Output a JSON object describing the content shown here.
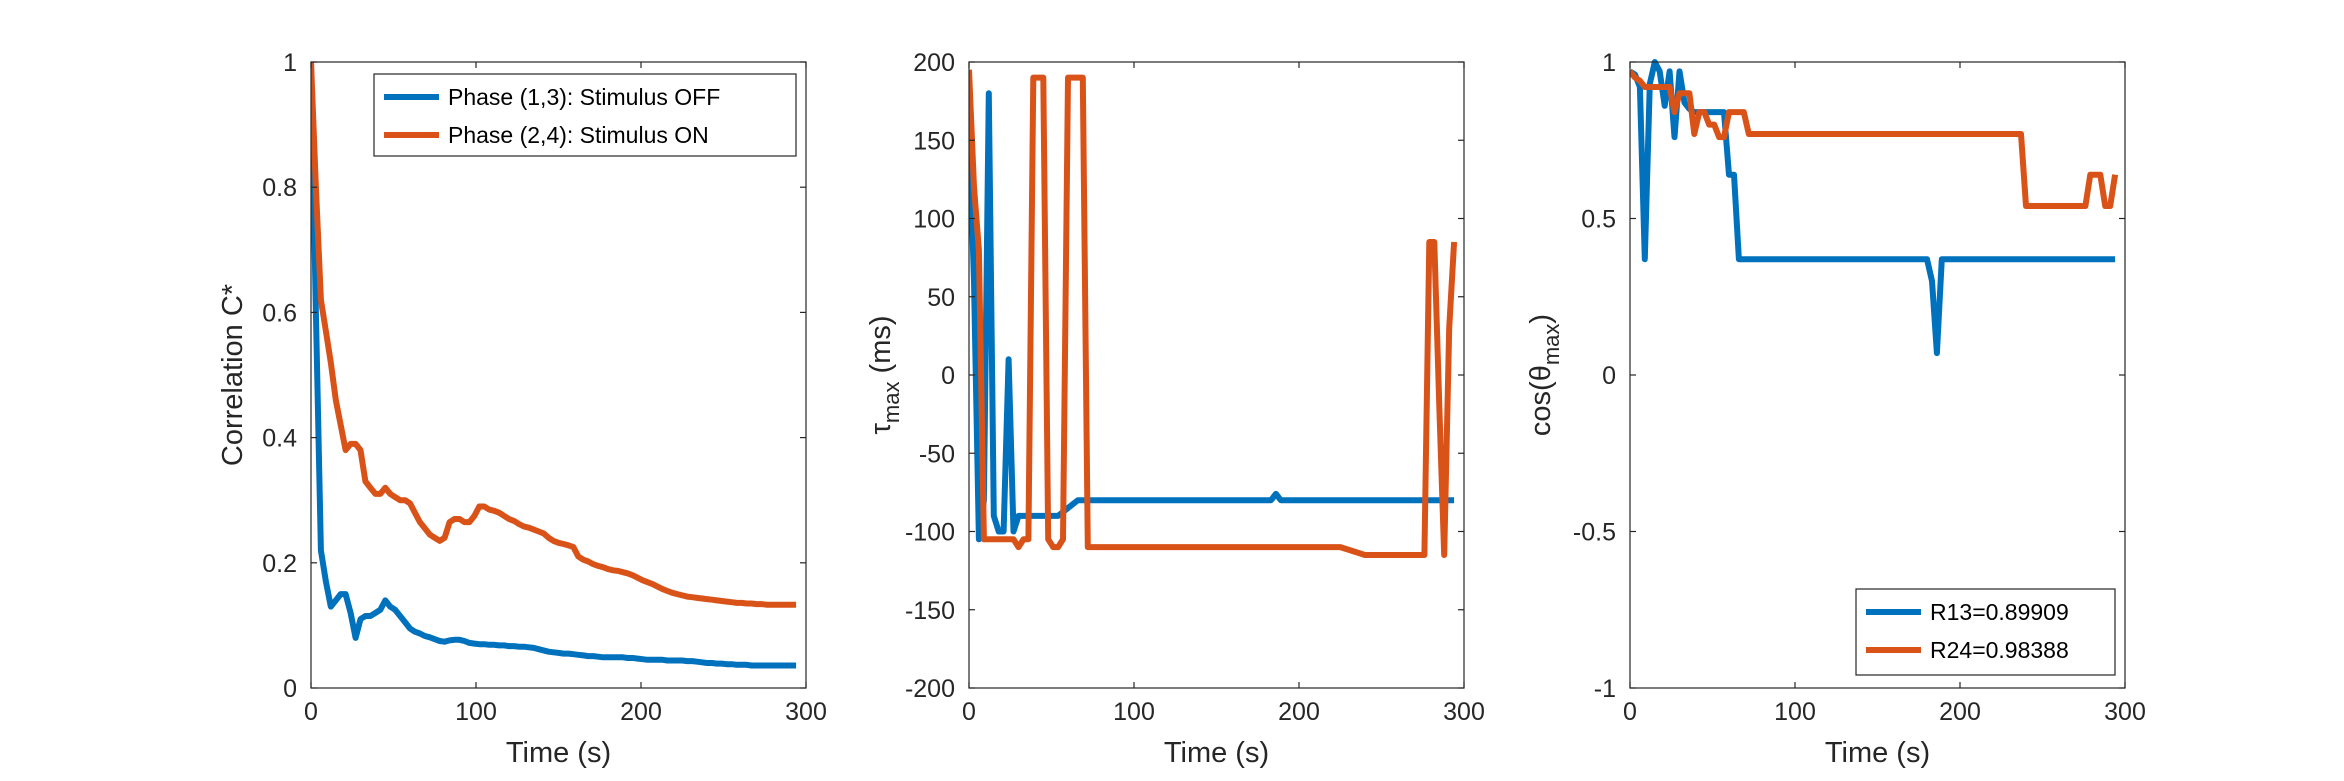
{
  "colors": {
    "blue": "#0072BD",
    "orange": "#D95319",
    "axis": "#262626"
  },
  "chart_data": [
    {
      "type": "line",
      "xlabel": "Time (s)",
      "ylabel": "Correlation C*",
      "xlim": [
        0,
        300
      ],
      "ylim": [
        0,
        1
      ],
      "xticks": [
        0,
        100,
        200,
        300
      ],
      "yticks": [
        0,
        0.2,
        0.4,
        0.6,
        0.8,
        1
      ],
      "xtick_labels": [
        "0",
        "100",
        "200",
        "300"
      ],
      "ytick_labels": [
        "0",
        "0.2",
        "0.4",
        "0.6",
        "0.8",
        "1"
      ],
      "grid": false,
      "legend": "top-right",
      "series": [
        {
          "name": "Phase (1,3): Stimulus OFF",
          "color": "#0072BD",
          "x": [
            0,
            3,
            6,
            9,
            12,
            15,
            18,
            21,
            24,
            27,
            30,
            33,
            36,
            39,
            42,
            45,
            48,
            51,
            54,
            57,
            60,
            63,
            66,
            69,
            72,
            75,
            78,
            81,
            84,
            87,
            90,
            93,
            96,
            99,
            102,
            105,
            108,
            111,
            114,
            117,
            120,
            123,
            126,
            129,
            132,
            135,
            138,
            141,
            144,
            147,
            150,
            153,
            156,
            159,
            162,
            165,
            168,
            171,
            174,
            177,
            180,
            183,
            186,
            189,
            192,
            195,
            198,
            201,
            204,
            207,
            210,
            213,
            216,
            219,
            222,
            225,
            228,
            231,
            234,
            237,
            240,
            243,
            246,
            249,
            252,
            255,
            258,
            261,
            264,
            267,
            270,
            273,
            276,
            279,
            282,
            285,
            288,
            291,
            294
          ],
          "y": [
            1.0,
            0.6,
            0.22,
            0.17,
            0.13,
            0.14,
            0.15,
            0.15,
            0.12,
            0.08,
            0.11,
            0.115,
            0.115,
            0.12,
            0.125,
            0.14,
            0.13,
            0.125,
            0.115,
            0.105,
            0.095,
            0.09,
            0.087,
            0.083,
            0.081,
            0.078,
            0.075,
            0.074,
            0.076,
            0.077,
            0.077,
            0.075,
            0.072,
            0.071,
            0.07,
            0.07,
            0.069,
            0.069,
            0.068,
            0.068,
            0.067,
            0.067,
            0.066,
            0.066,
            0.065,
            0.064,
            0.062,
            0.06,
            0.058,
            0.057,
            0.056,
            0.055,
            0.055,
            0.054,
            0.053,
            0.052,
            0.051,
            0.051,
            0.05,
            0.049,
            0.049,
            0.049,
            0.049,
            0.049,
            0.048,
            0.048,
            0.047,
            0.046,
            0.045,
            0.045,
            0.045,
            0.045,
            0.044,
            0.044,
            0.044,
            0.044,
            0.043,
            0.043,
            0.042,
            0.041,
            0.04,
            0.04,
            0.039,
            0.039,
            0.038,
            0.038,
            0.037,
            0.037,
            0.037,
            0.036,
            0.036,
            0.036,
            0.036,
            0.036,
            0.036,
            0.036,
            0.036,
            0.036,
            0.036
          ]
        },
        {
          "name": "Phase (2,4): Stimulus ON",
          "color": "#D95319",
          "x": [
            0,
            3,
            6,
            9,
            12,
            15,
            18,
            21,
            24,
            27,
            30,
            33,
            36,
            39,
            42,
            45,
            48,
            51,
            54,
            57,
            60,
            63,
            66,
            69,
            72,
            75,
            78,
            81,
            84,
            87,
            90,
            93,
            96,
            99,
            102,
            105,
            108,
            111,
            114,
            117,
            120,
            123,
            126,
            129,
            132,
            135,
            138,
            141,
            144,
            147,
            150,
            153,
            156,
            159,
            162,
            165,
            168,
            171,
            174,
            177,
            180,
            183,
            186,
            189,
            192,
            195,
            198,
            201,
            204,
            207,
            210,
            213,
            216,
            219,
            222,
            225,
            228,
            231,
            234,
            237,
            240,
            243,
            246,
            249,
            252,
            255,
            258,
            261,
            264,
            267,
            270,
            273,
            276,
            279,
            282,
            285,
            288,
            291,
            294
          ],
          "y": [
            1.0,
            0.8,
            0.62,
            0.57,
            0.52,
            0.46,
            0.42,
            0.38,
            0.39,
            0.39,
            0.38,
            0.33,
            0.32,
            0.31,
            0.31,
            0.32,
            0.31,
            0.305,
            0.3,
            0.3,
            0.295,
            0.28,
            0.265,
            0.255,
            0.245,
            0.24,
            0.235,
            0.24,
            0.265,
            0.27,
            0.27,
            0.265,
            0.265,
            0.275,
            0.29,
            0.29,
            0.285,
            0.283,
            0.28,
            0.275,
            0.27,
            0.267,
            0.262,
            0.258,
            0.256,
            0.253,
            0.25,
            0.247,
            0.24,
            0.235,
            0.232,
            0.23,
            0.228,
            0.225,
            0.21,
            0.205,
            0.202,
            0.198,
            0.195,
            0.193,
            0.19,
            0.188,
            0.187,
            0.185,
            0.183,
            0.18,
            0.176,
            0.172,
            0.169,
            0.166,
            0.162,
            0.158,
            0.155,
            0.152,
            0.15,
            0.148,
            0.146,
            0.145,
            0.144,
            0.143,
            0.142,
            0.141,
            0.14,
            0.139,
            0.138,
            0.137,
            0.136,
            0.136,
            0.135,
            0.135,
            0.134,
            0.134,
            0.133,
            0.133,
            0.133,
            0.133,
            0.133,
            0.133,
            0.133
          ]
        }
      ]
    },
    {
      "type": "line",
      "xlabel": "Time (s)",
      "ylabel": "τ",
      "ylabel_sub": "max",
      "ylabel_suffix": " (ms)",
      "xlim": [
        0,
        300
      ],
      "ylim": [
        -200,
        200
      ],
      "xticks": [
        0,
        100,
        200,
        300
      ],
      "yticks": [
        -200,
        -150,
        -100,
        -50,
        0,
        50,
        100,
        150,
        200
      ],
      "xtick_labels": [
        "0",
        "100",
        "200",
        "300"
      ],
      "ytick_labels": [
        "-200",
        "-150",
        "-100",
        "-50",
        "0",
        "50",
        "100",
        "150",
        "200"
      ],
      "grid": false,
      "series": [
        {
          "color": "#0072BD",
          "x": [
            0,
            3,
            6,
            9,
            12,
            15,
            18,
            21,
            24,
            27,
            30,
            33,
            36,
            45,
            54,
            60,
            66,
            72,
            120,
            183,
            186,
            189,
            195,
            240,
            294
          ],
          "y": [
            160,
            60,
            -105,
            -80,
            180,
            -90,
            -100,
            -100,
            10,
            -100,
            -90,
            -90,
            -90,
            -90,
            -90,
            -85,
            -80,
            -80,
            -80,
            -80,
            -76,
            -80,
            -80,
            -80,
            -80
          ]
        },
        {
          "color": "#D95319",
          "x": [
            0,
            3,
            6,
            9,
            12,
            15,
            27,
            30,
            33,
            36,
            39,
            45,
            48,
            51,
            54,
            57,
            60,
            63,
            66,
            69,
            72,
            75,
            150,
            180,
            225,
            240,
            270,
            273,
            276,
            279,
            282,
            285,
            288,
            291,
            294
          ],
          "y": [
            195,
            120,
            80,
            -105,
            -105,
            -105,
            -105,
            -110,
            -105,
            -105,
            190,
            190,
            -105,
            -110,
            -110,
            -105,
            190,
            190,
            190,
            190,
            -110,
            -110,
            -110,
            -110,
            -110,
            -115,
            -115,
            -115,
            -115,
            85,
            85,
            -20,
            -115,
            30,
            85
          ]
        }
      ]
    },
    {
      "type": "line",
      "xlabel": "Time (s)",
      "ylabel": "cos(θ",
      "ylabel_sub": "max",
      "ylabel_suffix": ")",
      "xlim": [
        0,
        300
      ],
      "ylim": [
        -1,
        1
      ],
      "xticks": [
        0,
        100,
        200,
        300
      ],
      "yticks": [
        -1,
        -0.5,
        0,
        0.5,
        1
      ],
      "xtick_labels": [
        "0",
        "100",
        "200",
        "300"
      ],
      "ytick_labels": [
        "-1",
        "-0.5",
        "0",
        "0.5",
        "1"
      ],
      "grid": false,
      "legend": "bottom-right",
      "series": [
        {
          "name": "R13=0.89909",
          "color": "#0072BD",
          "x": [
            0,
            3,
            6,
            9,
            12,
            15,
            18,
            21,
            24,
            27,
            30,
            33,
            36,
            39,
            42,
            45,
            48,
            51,
            54,
            57,
            60,
            63,
            66,
            72,
            120,
            180,
            183,
            186,
            189,
            192,
            195,
            240,
            294
          ],
          "y": [
            0.97,
            0.96,
            0.92,
            0.37,
            0.93,
            1.0,
            0.97,
            0.86,
            0.97,
            0.76,
            0.97,
            0.87,
            0.85,
            0.84,
            0.84,
            0.84,
            0.84,
            0.84,
            0.84,
            0.84,
            0.64,
            0.64,
            0.37,
            0.37,
            0.37,
            0.37,
            0.3,
            0.07,
            0.37,
            0.37,
            0.37,
            0.37,
            0.37
          ]
        },
        {
          "name": "R24=0.98388",
          "color": "#D95319",
          "x": [
            0,
            3,
            6,
            9,
            12,
            15,
            18,
            21,
            24,
            27,
            30,
            33,
            36,
            39,
            42,
            45,
            48,
            51,
            54,
            57,
            60,
            63,
            66,
            69,
            72,
            75,
            120,
            180,
            234,
            237,
            240,
            243,
            246,
            249,
            252,
            255,
            258,
            261,
            264,
            267,
            270,
            273,
            276,
            279,
            282,
            285,
            288,
            291,
            294
          ],
          "y": [
            0.97,
            0.95,
            0.94,
            0.92,
            0.92,
            0.92,
            0.92,
            0.92,
            0.92,
            0.84,
            0.9,
            0.9,
            0.9,
            0.77,
            0.84,
            0.84,
            0.8,
            0.8,
            0.76,
            0.76,
            0.84,
            0.84,
            0.84,
            0.84,
            0.77,
            0.77,
            0.77,
            0.77,
            0.77,
            0.77,
            0.54,
            0.54,
            0.54,
            0.54,
            0.54,
            0.54,
            0.54,
            0.54,
            0.54,
            0.54,
            0.54,
            0.54,
            0.54,
            0.64,
            0.64,
            0.64,
            0.54,
            0.54,
            0.64
          ]
        }
      ]
    }
  ]
}
